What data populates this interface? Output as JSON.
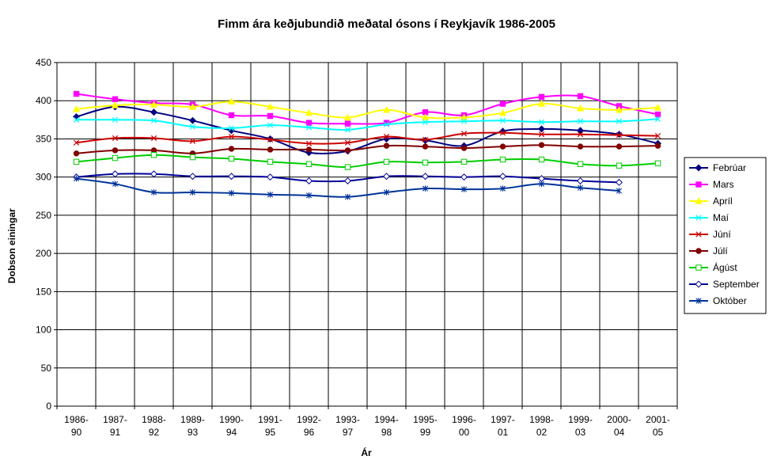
{
  "chart_data": {
    "type": "line",
    "title": "Fimm ára keðjubundið meðatal ósons í Reykjavík 1986-2005",
    "xlabel": "Ár",
    "ylabel": "Dobson einingar",
    "ylim": [
      0,
      450
    ],
    "yticks": [
      "0",
      "50",
      "100",
      "150",
      "200",
      "250",
      "300",
      "350",
      "400",
      "450"
    ],
    "grid": true,
    "legend_position": "right",
    "categories": [
      [
        "1986-",
        "90"
      ],
      [
        "1987-",
        "91"
      ],
      [
        "1988-",
        "92"
      ],
      [
        "1989-",
        "93"
      ],
      [
        "1990-",
        "94"
      ],
      [
        "1991-",
        "95"
      ],
      [
        "1992-",
        "96"
      ],
      [
        "1993-",
        "97"
      ],
      [
        "1994-",
        "98"
      ],
      [
        "1995-",
        "99"
      ],
      [
        "1996-",
        "00"
      ],
      [
        "1997-",
        "01"
      ],
      [
        "1998-",
        "02"
      ],
      [
        "1999-",
        "03"
      ],
      [
        "2000-",
        "04"
      ],
      [
        "2001-",
        "05"
      ]
    ],
    "series": [
      {
        "name": "Febrúar",
        "color": "#000080",
        "marker": "diamond",
        "filled": true,
        "values": [
          379,
          392,
          385,
          374,
          361,
          350,
          332,
          334,
          350,
          348,
          341,
          360,
          363,
          361,
          356,
          344
        ]
      },
      {
        "name": "Mars",
        "color": "#ff00ff",
        "marker": "square",
        "filled": true,
        "values": [
          409,
          402,
          397,
          395,
          381,
          380,
          371,
          370,
          371,
          385,
          381,
          396,
          405,
          406,
          393,
          382
        ]
      },
      {
        "name": "Apríl",
        "color": "#ffff00",
        "marker": "triangle",
        "filled": true,
        "values": [
          389,
          394,
          395,
          392,
          399,
          392,
          384,
          378,
          388,
          378,
          378,
          384,
          396,
          390,
          388,
          391
        ]
      },
      {
        "name": "Maí",
        "color": "#00ffff",
        "marker": "x",
        "filled": false,
        "values": [
          375,
          375,
          374,
          366,
          364,
          368,
          365,
          362,
          369,
          372,
          373,
          374,
          372,
          373,
          373,
          376
        ]
      },
      {
        "name": "Júní",
        "color": "#cc0000",
        "marker": "x",
        "filled": false,
        "values": [
          345,
          351,
          351,
          347,
          353,
          349,
          344,
          345,
          353,
          349,
          357,
          358,
          356,
          356,
          355,
          354
        ]
      },
      {
        "name": "Júlí",
        "color": "#800000",
        "marker": "circle",
        "filled": true,
        "values": [
          331,
          335,
          335,
          331,
          337,
          336,
          336,
          335,
          341,
          340,
          338,
          340,
          342,
          340,
          340,
          341
        ]
      },
      {
        "name": "Ágúst",
        "color": "#00cc00",
        "marker": "square",
        "filled": false,
        "values": [
          320,
          325,
          329,
          326,
          324,
          320,
          317,
          313,
          320,
          319,
          320,
          323,
          323,
          317,
          315,
          318
        ]
      },
      {
        "name": "September",
        "color": "#000099",
        "marker": "diamond",
        "filled": false,
        "values": [
          300,
          304,
          304,
          301,
          301,
          300,
          295,
          295,
          301,
          301,
          300,
          301,
          298,
          295,
          293,
          null
        ]
      },
      {
        "name": "Október",
        "color": "#003399",
        "marker": "star",
        "filled": false,
        "values": [
          298,
          291,
          280,
          280,
          279,
          277,
          276,
          274,
          280,
          285,
          284,
          285,
          291,
          286,
          282,
          null
        ]
      }
    ]
  }
}
